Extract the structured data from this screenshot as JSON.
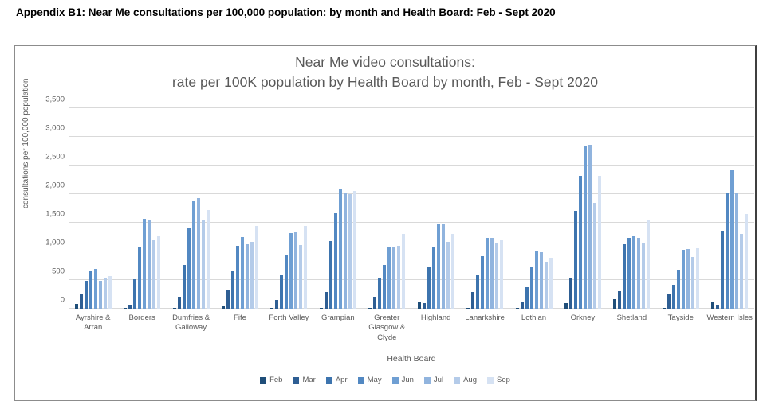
{
  "page_heading": "Appendix B1: Near Me consultations per 100,000 population: by month and Health Board: Feb - Sept 2020",
  "chart": {
    "title_line1": "Near Me video consultations:",
    "title_line2": "rate per 100K population by Health Board by month, Feb - Sept 2020"
  },
  "chart_data": {
    "type": "bar",
    "title": "Near Me video consultations: rate per 100K population by Health Board by month, Feb - Sept 2020",
    "xlabel": "Health Board",
    "ylabel": "consultations per 100,000 population",
    "ylim": [
      0,
      3500
    ],
    "ytick_step": 500,
    "ytick_labels": [
      "0",
      "500",
      "1,000",
      "1,500",
      "2,000",
      "2,500",
      "3,000",
      "3,500"
    ],
    "grid": true,
    "legend_position": "bottom",
    "categories": [
      "Ayrshire & Arran",
      "Borders",
      "Dumfries & Galloway",
      "Fife",
      "Forth Valley",
      "Grampian",
      "Greater Glasgow & Clyde",
      "Highland",
      "Lanarkshire",
      "Lothian",
      "Orkney",
      "Shetland",
      "Tayside",
      "Western Isles"
    ],
    "series": [
      {
        "name": "Feb",
        "color": "#1f4e79",
        "values": [
          90,
          10,
          20,
          60,
          15,
          20,
          10,
          105,
          10,
          10,
          100,
          160,
          10,
          105
        ]
      },
      {
        "name": "Mar",
        "color": "#2e5e93",
        "values": [
          245,
          70,
          205,
          330,
          155,
          290,
          210,
          100,
          290,
          110,
          530,
          300,
          250,
          65
        ]
      },
      {
        "name": "Apr",
        "color": "#3d74ae",
        "values": [
          480,
          515,
          760,
          650,
          585,
          1180,
          545,
          720,
          585,
          375,
          1710,
          1130,
          420,
          1360
        ]
      },
      {
        "name": "May",
        "color": "#5288c2",
        "values": [
          660,
          1090,
          1410,
          1100,
          930,
          1660,
          770,
          1070,
          915,
          730,
          2320,
          1240,
          685,
          2010
        ]
      },
      {
        "name": "Jun",
        "color": "#6f9fd3",
        "values": [
          695,
          1565,
          1880,
          1250,
          1320,
          2100,
          1085,
          1490,
          1240,
          1000,
          2840,
          1270,
          1025,
          2410
        ]
      },
      {
        "name": "Jul",
        "color": "#91b4de",
        "values": [
          490,
          1550,
          1925,
          1130,
          1345,
          2015,
          1085,
          1480,
          1240,
          990,
          2860,
          1240,
          1035,
          2025
        ]
      },
      {
        "name": "Aug",
        "color": "#b4cbe9",
        "values": [
          535,
          1195,
          1560,
          1160,
          1115,
          1995,
          1095,
          1170,
          1140,
          825,
          1850,
          1135,
          900,
          1310
        ]
      },
      {
        "name": "Sep",
        "color": "#d6e2f3",
        "values": [
          570,
          1275,
          1720,
          1440,
          1450,
          2055,
          1310,
          1310,
          1195,
          885,
          2320,
          1540,
          1050,
          1650
        ]
      }
    ]
  }
}
